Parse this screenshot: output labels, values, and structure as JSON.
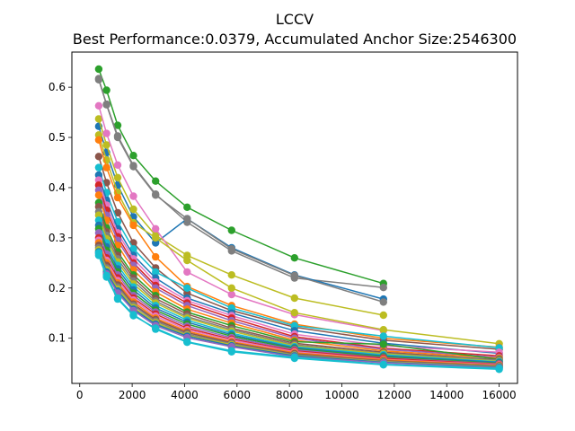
{
  "chart_data": {
    "type": "line",
    "title": "LCCV",
    "subtitle": "Best Performance:0.0379, Accumulated Anchor Size:2546300",
    "xlabel": "",
    "ylabel": "",
    "xlim": [
      -300,
      16700
    ],
    "ylim": [
      0.01,
      0.67
    ],
    "xticks": [
      0,
      2000,
      4000,
      6000,
      8000,
      10000,
      12000,
      14000,
      16000
    ],
    "yticks": [
      0.1,
      0.2,
      0.3,
      0.4,
      0.5,
      0.6
    ],
    "grid": false,
    "legend": "none",
    "anchors": [
      724,
      1024,
      1448,
      2048,
      2896,
      4096,
      5793,
      8192,
      11585,
      16000
    ],
    "series": [
      {
        "color": "#2ca02c",
        "values": [
          0.636,
          0.594,
          0.524,
          0.464,
          0.413,
          0.361,
          0.315,
          0.26,
          0.209
        ]
      },
      {
        "color": "#7f7f7f",
        "values": [
          0.615,
          0.566,
          0.503,
          0.444,
          0.387,
          0.331,
          0.274,
          0.22,
          0.201
        ]
      },
      {
        "color": "#1f77b4",
        "values": [
          0.522,
          0.47,
          0.405,
          0.342,
          0.29,
          0.338,
          0.28,
          0.226,
          0.178
        ]
      },
      {
        "color": "#7f7f7f",
        "values": [
          0.617,
          0.565,
          0.5,
          0.442,
          0.385,
          0.338,
          0.278,
          0.225,
          0.172
        ]
      },
      {
        "color": "#bcbd22",
        "values": [
          0.537,
          0.485,
          0.42,
          0.357,
          0.305,
          0.265,
          0.226,
          0.18,
          0.146
        ]
      },
      {
        "color": "#e377c2",
        "values": [
          0.563,
          0.508,
          0.445,
          0.383,
          0.318,
          0.232,
          0.187,
          0.147,
          0.115
        ]
      },
      {
        "color": "#bcbd22",
        "values": [
          0.505,
          0.455,
          0.39,
          0.33,
          0.3,
          0.255,
          0.2,
          0.151,
          0.117,
          0.089
        ]
      },
      {
        "color": "#ff7f0e",
        "values": [
          0.495,
          0.44,
          0.38,
          0.325,
          0.262,
          0.203,
          0.165,
          0.128,
          0.1,
          0.082
        ]
      },
      {
        "color": "#8c564b",
        "values": [
          0.462,
          0.41,
          0.35,
          0.29,
          0.24,
          0.19,
          0.155,
          0.122,
          0.096,
          0.078
        ]
      },
      {
        "color": "#17becf",
        "values": [
          0.44,
          0.39,
          0.332,
          0.278,
          0.232,
          0.2,
          0.16,
          0.125,
          0.104,
          0.081
        ]
      },
      {
        "color": "#1f77b4",
        "values": [
          0.425,
          0.375,
          0.318,
          0.265,
          0.22,
          0.18,
          0.15,
          0.115,
          0.09,
          0.07
        ]
      },
      {
        "color": "#e377c2",
        "values": [
          0.415,
          0.365,
          0.31,
          0.258,
          0.212,
          0.175,
          0.145,
          0.108,
          0.085,
          0.072
        ]
      },
      {
        "color": "#d62728",
        "values": [
          0.405,
          0.355,
          0.302,
          0.25,
          0.205,
          0.17,
          0.14,
          0.103,
          0.08,
          0.065
        ]
      },
      {
        "color": "#9467bd",
        "values": [
          0.395,
          0.345,
          0.295,
          0.245,
          0.2,
          0.165,
          0.135,
          0.1,
          0.078,
          0.062
        ]
      },
      {
        "color": "#ff7f0e",
        "values": [
          0.385,
          0.335,
          0.285,
          0.236,
          0.192,
          0.158,
          0.13,
          0.096,
          0.075,
          0.06
        ]
      },
      {
        "color": "#2ca02c",
        "values": [
          0.37,
          0.32,
          0.272,
          0.226,
          0.185,
          0.152,
          0.125,
          0.093,
          0.088,
          0.058
        ]
      },
      {
        "color": "#8c564b",
        "values": [
          0.362,
          0.312,
          0.265,
          0.22,
          0.179,
          0.148,
          0.12,
          0.09,
          0.072,
          0.057
        ]
      },
      {
        "color": "#7f7f7f",
        "values": [
          0.352,
          0.305,
          0.258,
          0.214,
          0.174,
          0.143,
          0.117,
          0.087,
          0.07,
          0.056
        ]
      },
      {
        "color": "#bcbd22",
        "values": [
          0.345,
          0.298,
          0.252,
          0.208,
          0.17,
          0.14,
          0.114,
          0.085,
          0.069,
          0.054
        ]
      },
      {
        "color": "#17becf",
        "values": [
          0.335,
          0.29,
          0.245,
          0.202,
          0.165,
          0.136,
          0.11,
          0.083,
          0.067,
          0.053
        ]
      },
      {
        "color": "#1f77b4",
        "values": [
          0.325,
          0.282,
          0.238,
          0.196,
          0.16,
          0.132,
          0.107,
          0.081,
          0.065,
          0.052
        ]
      },
      {
        "color": "#2ca02c",
        "values": [
          0.318,
          0.275,
          0.232,
          0.19,
          0.156,
          0.128,
          0.104,
          0.079,
          0.063,
          0.05
        ]
      },
      {
        "color": "#9467bd",
        "values": [
          0.31,
          0.268,
          0.226,
          0.185,
          0.152,
          0.124,
          0.101,
          0.077,
          0.061,
          0.049
        ]
      },
      {
        "color": "#d62728",
        "values": [
          0.3,
          0.26,
          0.22,
          0.18,
          0.148,
          0.12,
          0.098,
          0.075,
          0.06,
          0.048
        ]
      },
      {
        "color": "#e377c2",
        "values": [
          0.295,
          0.255,
          0.215,
          0.176,
          0.144,
          0.117,
          0.096,
          0.073,
          0.058,
          0.047
        ]
      },
      {
        "color": "#ff7f0e",
        "values": [
          0.29,
          0.25,
          0.21,
          0.172,
          0.14,
          0.114,
          0.093,
          0.071,
          0.057,
          0.046
        ]
      },
      {
        "color": "#8c564b",
        "values": [
          0.285,
          0.245,
          0.206,
          0.168,
          0.137,
          0.111,
          0.091,
          0.069,
          0.055,
          0.045
        ]
      },
      {
        "color": "#7f7f7f",
        "values": [
          0.28,
          0.24,
          0.202,
          0.165,
          0.134,
          0.108,
          0.089,
          0.067,
          0.054,
          0.044
        ]
      },
      {
        "color": "#bcbd22",
        "values": [
          0.276,
          0.236,
          0.198,
          0.161,
          0.131,
          0.106,
          0.087,
          0.066,
          0.053,
          0.043
        ]
      },
      {
        "color": "#1f77b4",
        "values": [
          0.272,
          0.232,
          0.194,
          0.158,
          0.128,
          0.104,
          0.085,
          0.065,
          0.052,
          0.042
        ]
      },
      {
        "color": "#9467bd",
        "values": [
          0.268,
          0.228,
          0.19,
          0.155,
          0.125,
          0.101,
          0.083,
          0.063,
          0.051,
          0.041
        ]
      },
      {
        "color": "#17becf",
        "values": [
          0.265,
          0.222,
          0.178,
          0.145,
          0.12,
          0.093,
          0.075,
          0.062,
          0.048,
          0.04
        ]
      },
      {
        "color": "#17becf",
        "values": [
          0.27,
          0.225,
          0.18,
          0.147,
          0.118,
          0.092,
          0.073,
          0.06,
          0.047,
          0.038
        ]
      }
    ]
  }
}
